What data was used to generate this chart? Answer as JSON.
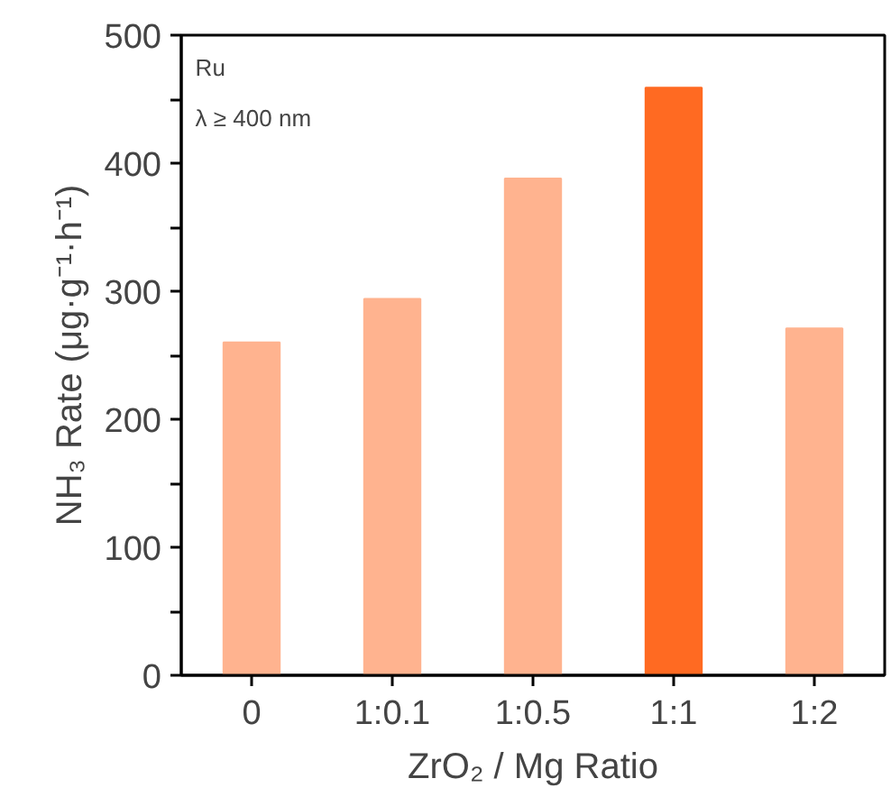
{
  "chart_data": {
    "type": "bar",
    "xlabel": "ZrO₂ / Mg Ratio",
    "ylabel": "NH₃ Rate (μg·g⁻¹·h⁻¹)",
    "categories": [
      "0",
      "1:0.1",
      "1:0.5",
      "1:1",
      "1:2"
    ],
    "values": [
      260,
      294,
      388,
      459,
      271
    ],
    "colors": [
      "#ffb38f",
      "#ffb38f",
      "#ffb38f",
      "#ff6a22",
      "#ffb38f"
    ],
    "ylim": [
      0,
      500
    ],
    "yticks": [
      0,
      {
        "value": 50,
        "label": null
      },
      100,
      {
        "value": 150,
        "label": null
      },
      200,
      {
        "value": 250,
        "label": null
      },
      300,
      {
        "value": 350,
        "label": null
      },
      400,
      {
        "value": 450,
        "label": null
      },
      500
    ],
    "annotations": [
      "Ru",
      "λ ≥ 400 nm"
    ]
  }
}
